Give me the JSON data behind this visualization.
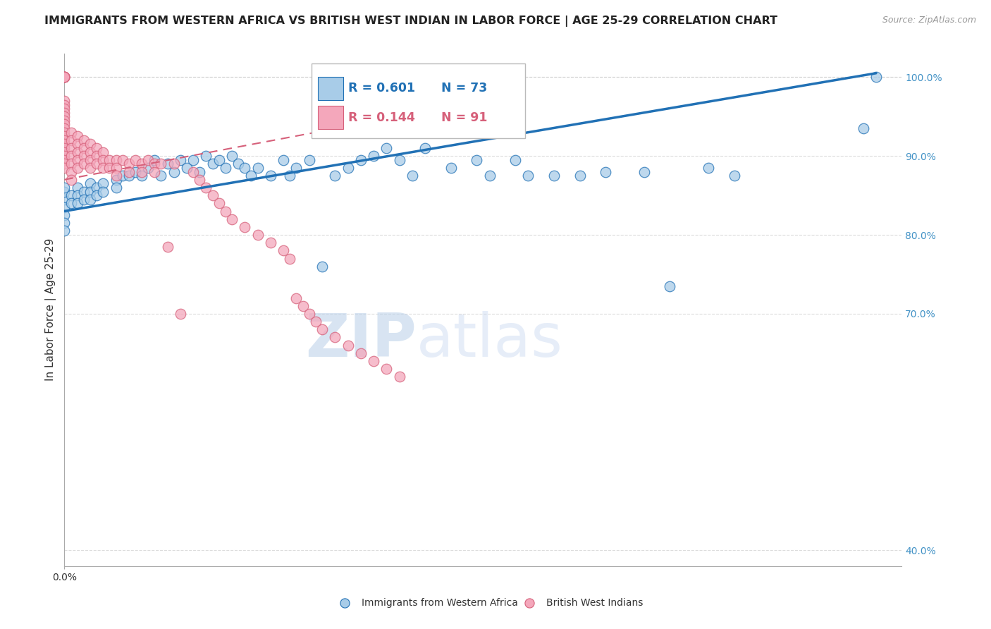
{
  "title": "IMMIGRANTS FROM WESTERN AFRICA VS BRITISH WEST INDIAN IN LABOR FORCE | AGE 25-29 CORRELATION CHART",
  "source": "Source: ZipAtlas.com",
  "ylabel": "In Labor Force | Age 25-29",
  "xlabel": "",
  "legend_series1_label": "Immigrants from Western Africa",
  "legend_series1_r": "R = 0.601",
  "legend_series1_n": "N = 73",
  "legend_series2_label": "British West Indians",
  "legend_series2_r": "R = 0.144",
  "legend_series2_n": "N = 91",
  "color_blue": "#a8cce8",
  "color_pink": "#f4a7bb",
  "color_blue_line": "#2171b5",
  "color_pink_line": "#d6607a",
  "color_right_axis": "#4292c6",
  "color_title": "#222222",
  "watermark_zip": "ZIP",
  "watermark_atlas": "atlas",
  "xmin": 0.0,
  "xmax": 0.65,
  "ymin": 0.38,
  "ymax": 1.03,
  "yticks_right": [
    0.4,
    0.7,
    0.8,
    0.9,
    1.0
  ],
  "ytick_labels_right": [
    "40.0%",
    "70.0%",
    "80.0%",
    "90.0%",
    "100.0%"
  ],
  "background_color": "#ffffff",
  "grid_color": "#cccccc",
  "title_fontsize": 11.5,
  "source_fontsize": 9,
  "axis_label_fontsize": 11,
  "tick_fontsize": 10,
  "blue_scatter_x": [
    0.0,
    0.0,
    0.0,
    0.0,
    0.0,
    0.0,
    0.0,
    0.005,
    0.005,
    0.01,
    0.01,
    0.01,
    0.015,
    0.015,
    0.02,
    0.02,
    0.02,
    0.025,
    0.025,
    0.03,
    0.03,
    0.04,
    0.04,
    0.045,
    0.05,
    0.055,
    0.06,
    0.065,
    0.07,
    0.075,
    0.08,
    0.085,
    0.09,
    0.095,
    0.1,
    0.105,
    0.11,
    0.115,
    0.12,
    0.125,
    0.13,
    0.135,
    0.14,
    0.145,
    0.15,
    0.16,
    0.17,
    0.175,
    0.18,
    0.19,
    0.2,
    0.21,
    0.22,
    0.23,
    0.24,
    0.25,
    0.26,
    0.27,
    0.28,
    0.3,
    0.32,
    0.33,
    0.35,
    0.36,
    0.38,
    0.4,
    0.42,
    0.45,
    0.47,
    0.5,
    0.52,
    0.62,
    0.63
  ],
  "blue_scatter_y": [
    0.845,
    0.855,
    0.835,
    0.825,
    0.815,
    0.805,
    0.86,
    0.85,
    0.84,
    0.86,
    0.85,
    0.84,
    0.855,
    0.845,
    0.865,
    0.855,
    0.845,
    0.86,
    0.85,
    0.865,
    0.855,
    0.87,
    0.86,
    0.875,
    0.875,
    0.88,
    0.875,
    0.885,
    0.895,
    0.875,
    0.89,
    0.88,
    0.895,
    0.885,
    0.895,
    0.88,
    0.9,
    0.89,
    0.895,
    0.885,
    0.9,
    0.89,
    0.885,
    0.875,
    0.885,
    0.875,
    0.895,
    0.875,
    0.885,
    0.895,
    0.76,
    0.875,
    0.885,
    0.895,
    0.9,
    0.91,
    0.895,
    0.875,
    0.91,
    0.885,
    0.895,
    0.875,
    0.895,
    0.875,
    0.875,
    0.875,
    0.88,
    0.88,
    0.735,
    0.885,
    0.875,
    0.935,
    1.0
  ],
  "pink_scatter_x": [
    0.0,
    0.0,
    0.0,
    0.0,
    0.0,
    0.0,
    0.0,
    0.0,
    0.0,
    0.0,
    0.0,
    0.0,
    0.0,
    0.0,
    0.0,
    0.0,
    0.0,
    0.0,
    0.0,
    0.0,
    0.0,
    0.0,
    0.0,
    0.0,
    0.005,
    0.005,
    0.005,
    0.005,
    0.005,
    0.005,
    0.005,
    0.01,
    0.01,
    0.01,
    0.01,
    0.01,
    0.015,
    0.015,
    0.015,
    0.015,
    0.02,
    0.02,
    0.02,
    0.02,
    0.025,
    0.025,
    0.025,
    0.03,
    0.03,
    0.03,
    0.035,
    0.035,
    0.04,
    0.04,
    0.04,
    0.045,
    0.05,
    0.05,
    0.055,
    0.06,
    0.06,
    0.065,
    0.07,
    0.07,
    0.075,
    0.08,
    0.085,
    0.09,
    0.1,
    0.105,
    0.11,
    0.115,
    0.12,
    0.125,
    0.13,
    0.14,
    0.15,
    0.16,
    0.17,
    0.175,
    0.18,
    0.185,
    0.19,
    0.195,
    0.2,
    0.21,
    0.22,
    0.23,
    0.24,
    0.25,
    0.26
  ],
  "pink_scatter_y": [
    1.0,
    1.0,
    1.0,
    1.0,
    1.0,
    1.0,
    0.97,
    0.965,
    0.96,
    0.955,
    0.95,
    0.945,
    0.94,
    0.935,
    0.93,
    0.925,
    0.92,
    0.915,
    0.91,
    0.905,
    0.9,
    0.895,
    0.89,
    0.885,
    0.93,
    0.92,
    0.91,
    0.9,
    0.89,
    0.88,
    0.87,
    0.925,
    0.915,
    0.905,
    0.895,
    0.885,
    0.92,
    0.91,
    0.9,
    0.89,
    0.915,
    0.905,
    0.895,
    0.885,
    0.91,
    0.9,
    0.89,
    0.905,
    0.895,
    0.885,
    0.895,
    0.885,
    0.895,
    0.885,
    0.875,
    0.895,
    0.89,
    0.88,
    0.895,
    0.89,
    0.88,
    0.895,
    0.89,
    0.88,
    0.89,
    0.785,
    0.89,
    0.7,
    0.88,
    0.87,
    0.86,
    0.85,
    0.84,
    0.83,
    0.82,
    0.81,
    0.8,
    0.79,
    0.78,
    0.77,
    0.72,
    0.71,
    0.7,
    0.69,
    0.68,
    0.67,
    0.66,
    0.65,
    0.64,
    0.63,
    0.62
  ],
  "blue_line_x": [
    0.0,
    0.63
  ],
  "blue_line_y": [
    0.83,
    1.005
  ],
  "pink_line_x": [
    0.0,
    0.26
  ],
  "pink_line_y": [
    0.87,
    0.95
  ]
}
